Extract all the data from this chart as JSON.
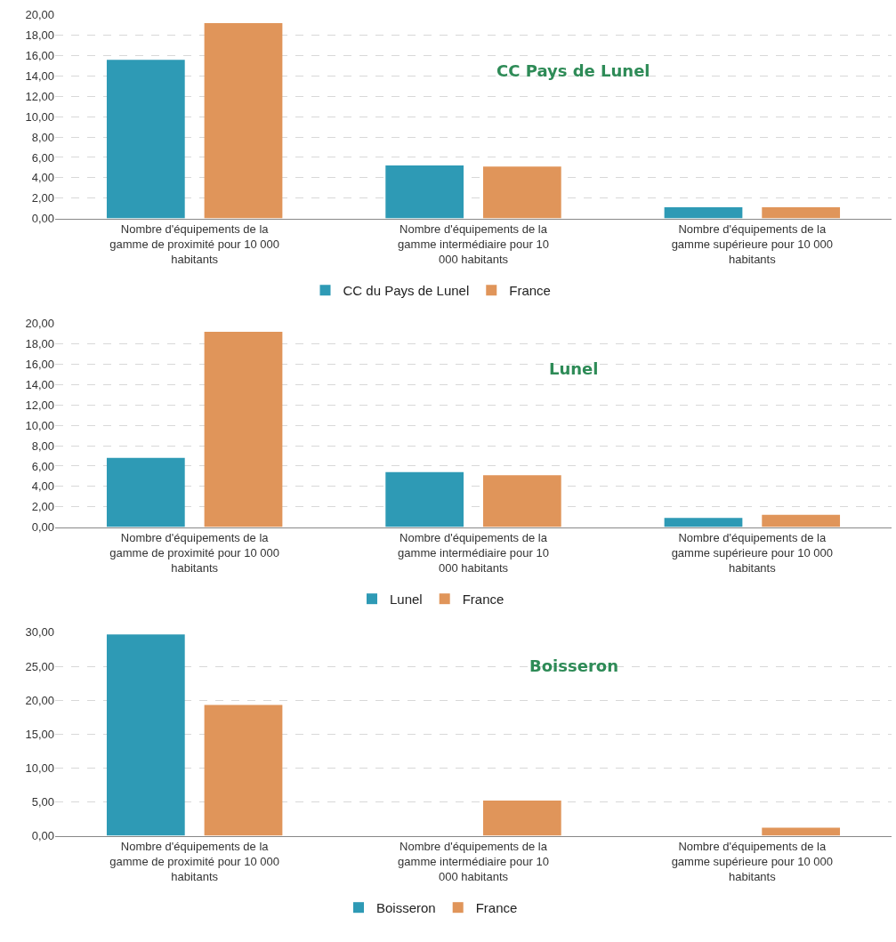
{
  "chart_data": [
    {
      "type": "bar",
      "title": "CC Pays de Lunel",
      "categories": [
        "Nombre d'équipements de la gamme de proximité pour 10 000 habitants",
        "Nombre d'équipements de la gamme intermédiaire pour 10 000 habitants",
        "Nombre d'équipements de la gamme supérieure pour 10 000 habitants"
      ],
      "series": [
        {
          "name": "CC du Pays de Lunel",
          "color": "#2e9ab5",
          "values": [
            15.6,
            5.2,
            1.1
          ]
        },
        {
          "name": "France",
          "color": "#e0955a",
          "values": [
            19.2,
            5.1,
            1.1
          ]
        }
      ],
      "ylim": [
        0,
        20
      ],
      "yticks": [
        {
          "value": 0,
          "label": "0,00"
        },
        {
          "value": 2,
          "label": "2,00"
        },
        {
          "value": 4,
          "label": "4,00"
        },
        {
          "value": 6,
          "label": "6,00"
        },
        {
          "value": 8,
          "label": "8,00"
        },
        {
          "value": 10,
          "label": "10,00"
        },
        {
          "value": 12,
          "label": "12,00"
        },
        {
          "value": 14,
          "label": "14,00"
        },
        {
          "value": 16,
          "label": "16,00"
        },
        {
          "value": 18,
          "label": "18,00"
        },
        {
          "value": 20,
          "label": "20,00"
        }
      ],
      "grid": "y",
      "legend": "bottom"
    },
    {
      "type": "bar",
      "title": "Lunel",
      "categories": [
        "Nombre d'équipements de la gamme de proximité pour 10 000 habitants",
        "Nombre d'équipements de la gamme intermédiaire pour 10 000 habitants",
        "Nombre d'équipements de la gamme supérieure pour 10 000 habitants"
      ],
      "series": [
        {
          "name": "Lunel",
          "color": "#2e9ab5",
          "values": [
            6.8,
            5.4,
            0.9
          ]
        },
        {
          "name": "France",
          "color": "#e0955a",
          "values": [
            19.2,
            5.1,
            1.2
          ]
        }
      ],
      "ylim": [
        0,
        20
      ],
      "yticks": [
        {
          "value": 0,
          "label": "0,00"
        },
        {
          "value": 2,
          "label": "2,00"
        },
        {
          "value": 4,
          "label": "4,00"
        },
        {
          "value": 6,
          "label": "6,00"
        },
        {
          "value": 8,
          "label": "8,00"
        },
        {
          "value": 10,
          "label": "10,00"
        },
        {
          "value": 12,
          "label": "12,00"
        },
        {
          "value": 14,
          "label": "14,00"
        },
        {
          "value": 16,
          "label": "16,00"
        },
        {
          "value": 18,
          "label": "18,00"
        },
        {
          "value": 20,
          "label": "20,00"
        }
      ],
      "grid": "y",
      "legend": "bottom"
    },
    {
      "type": "bar",
      "title": "Boisseron",
      "categories": [
        "Nombre d'équipements de la gamme de proximité pour 10 000 habitants",
        "Nombre d'équipements de la gamme intermédiaire pour 10 000 habitants",
        "Nombre d'équipements de la gamme supérieure pour 10 000 habitants"
      ],
      "series": [
        {
          "name": "Boisseron",
          "color": "#2e9ab5",
          "values": [
            29.7,
            0,
            0
          ]
        },
        {
          "name": "France",
          "color": "#e0955a",
          "values": [
            19.3,
            5.2,
            1.2
          ]
        }
      ],
      "ylim": [
        0,
        30
      ],
      "yticks": [
        {
          "value": 0,
          "label": "0,00"
        },
        {
          "value": 5,
          "label": "5,00"
        },
        {
          "value": 10,
          "label": "10,00"
        },
        {
          "value": 15,
          "label": "15,00"
        },
        {
          "value": 20,
          "label": "20,00"
        },
        {
          "value": 25,
          "label": "25,00"
        },
        {
          "value": 30,
          "label": "30,00"
        }
      ],
      "grid": "y",
      "legend": "bottom"
    }
  ]
}
